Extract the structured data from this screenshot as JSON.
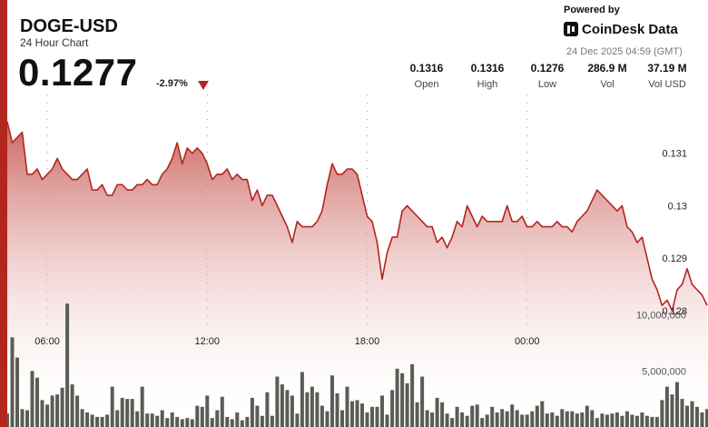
{
  "header": {
    "title": "DOGE-USD",
    "subtitle": "24 Hour Chart",
    "price": "0.1277",
    "change": "-2.97%",
    "powered_by": "Powered by",
    "brand": "CoinDesk Data",
    "timestamp": "24 Dec 2025 04:59 (GMT)"
  },
  "stats": [
    {
      "value": "0.1316",
      "label": "Open"
    },
    {
      "value": "0.1316",
      "label": "High"
    },
    {
      "value": "0.1276",
      "label": "Low"
    },
    {
      "value": "286.9 M",
      "label": "Vol"
    },
    {
      "value": "37.19 M",
      "label": "Vol USD"
    }
  ],
  "colors": {
    "accent": "#b3261e",
    "line": "#b3261e",
    "volume": "#5a5d55"
  },
  "chart_data": {
    "type": "area",
    "x_tick_labels": [
      "06:00",
      "12:00",
      "18:00",
      "00:00"
    ],
    "y_tick_labels": [
      "0.131",
      "0.13",
      "0.129",
      "0.128"
    ],
    "y_ticks": [
      0.131,
      0.13,
      0.129,
      0.128
    ],
    "ylim": [
      0.12755,
      0.13205
    ],
    "price": [
      0.1316,
      0.1312,
      0.1313,
      0.1314,
      0.1306,
      0.1306,
      0.1307,
      0.1305,
      0.1306,
      0.1307,
      0.1309,
      0.1307,
      0.1306,
      0.1305,
      0.1305,
      0.1306,
      0.1307,
      0.1303,
      0.1303,
      0.1304,
      0.1302,
      0.1302,
      0.1304,
      0.1304,
      0.1303,
      0.1303,
      0.1304,
      0.1304,
      0.1305,
      0.1304,
      0.1304,
      0.1306,
      0.1307,
      0.1309,
      0.1312,
      0.1308,
      0.1311,
      0.131,
      0.1311,
      0.131,
      0.1308,
      0.1305,
      0.1306,
      0.1306,
      0.1307,
      0.1305,
      0.1306,
      0.1305,
      0.1305,
      0.1301,
      0.1303,
      0.13,
      0.1302,
      0.1302,
      0.13,
      0.1298,
      0.1296,
      0.1293,
      0.1297,
      0.1296,
      0.1296,
      0.1296,
      0.1297,
      0.1299,
      0.1304,
      0.1308,
      0.1306,
      0.1306,
      0.1307,
      0.1307,
      0.1306,
      0.1302,
      0.1298,
      0.1297,
      0.1293,
      0.1286,
      0.1291,
      0.1294,
      0.1294,
      0.1299,
      0.13,
      0.1299,
      0.1298,
      0.1297,
      0.1296,
      0.1296,
      0.1293,
      0.1294,
      0.1292,
      0.1294,
      0.1297,
      0.1296,
      0.13,
      0.1298,
      0.1296,
      0.1298,
      0.1297,
      0.1297,
      0.1297,
      0.1297,
      0.13,
      0.1297,
      0.1297,
      0.1298,
      0.1296,
      0.1296,
      0.1297,
      0.1296,
      0.1296,
      0.1296,
      0.1297,
      0.1296,
      0.1296,
      0.1295,
      0.1297,
      0.1298,
      0.1299,
      0.1301,
      0.1303,
      0.1302,
      0.1301,
      0.13,
      0.1299,
      0.13,
      0.1296,
      0.1295,
      0.1293,
      0.1294,
      0.129,
      0.1286,
      0.1284,
      0.1281,
      0.1282,
      0.128,
      0.1284,
      0.1285,
      0.1288,
      0.1285,
      0.1284,
      0.1283,
      0.1281
    ],
    "volume_axis_labels": [
      "10,000,000",
      "5,000,000"
    ],
    "volume_ticks": [
      10000000,
      5000000
    ],
    "volume_max": 15800000,
    "volume": [
      1200000,
      8000000,
      6200000,
      1600000,
      1500000,
      5000000,
      4400000,
      2400000,
      2000000,
      2800000,
      2900000,
      3500000,
      11000000,
      3800000,
      2800000,
      1600000,
      1300000,
      1100000,
      900000,
      900000,
      1100000,
      3600000,
      1500000,
      2600000,
      2500000,
      2500000,
      1400000,
      3600000,
      1200000,
      1200000,
      1000000,
      1500000,
      800000,
      1300000,
      900000,
      700000,
      800000,
      700000,
      1900000,
      1800000,
      2800000,
      800000,
      1500000,
      2700000,
      900000,
      700000,
      1300000,
      600000,
      900000,
      2600000,
      1900000,
      1000000,
      3100000,
      1000000,
      4500000,
      3800000,
      3300000,
      2800000,
      1200000,
      4900000,
      3100000,
      3600000,
      3100000,
      1900000,
      1400000,
      4600000,
      3000000,
      1500000,
      3600000,
      2300000,
      2400000,
      2100000,
      1300000,
      1800000,
      1800000,
      2800000,
      1100000,
      3300000,
      5200000,
      4800000,
      3900000,
      5600000,
      2200000,
      4500000,
      1500000,
      1300000,
      2600000,
      2200000,
      1200000,
      800000,
      1800000,
      1300000,
      1000000,
      1900000,
      2000000,
      800000,
      1100000,
      1800000,
      1300000,
      1600000,
      1400000,
      2000000,
      1500000,
      1100000,
      1100000,
      1400000,
      1900000,
      2300000,
      1200000,
      1300000,
      1000000,
      1600000,
      1400000,
      1400000,
      1200000,
      1300000,
      1900000,
      1500000,
      800000,
      1200000,
      1100000,
      1200000,
      1300000,
      1000000,
      1400000,
      1100000,
      1000000,
      1300000,
      1000000,
      900000,
      900000,
      2400000,
      3600000,
      2900000,
      4000000,
      2500000,
      1900000,
      2300000,
      1800000,
      1300000,
      1600000
    ]
  }
}
